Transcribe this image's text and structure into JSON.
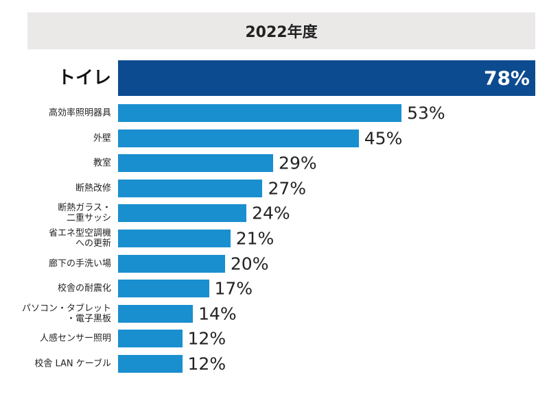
{
  "chart_data": {
    "type": "bar",
    "orientation": "horizontal",
    "title": "2022年度",
    "categories": [
      "トイレ",
      "高効率照明器具",
      "外壁",
      "教室",
      "断熱改修",
      "断熱ガラス・\n二重サッシ",
      "省エネ型空調機\nへの更新",
      "廊下の手洗い場",
      "校舎の耐震化",
      "パソコン・タブレット\n・電子黒板",
      "人感センサー照明",
      "校舎 LAN ケーブル"
    ],
    "values": [
      78,
      53,
      45,
      29,
      27,
      24,
      21,
      20,
      17,
      14,
      12,
      12
    ],
    "value_labels": [
      "78%",
      "53%",
      "45%",
      "29%",
      "27%",
      "24%",
      "21%",
      "20%",
      "17%",
      "14%",
      "12%",
      "12%"
    ],
    "colors": [
      "#0d4b91",
      "#1a8fcf",
      "#1a8fcf",
      "#1a8fcf",
      "#1a8fcf",
      "#1a8fcf",
      "#1a8fcf",
      "#1a8fcf",
      "#1a8fcf",
      "#1a8fcf",
      "#1a8fcf",
      "#1a8fcf"
    ]
  }
}
